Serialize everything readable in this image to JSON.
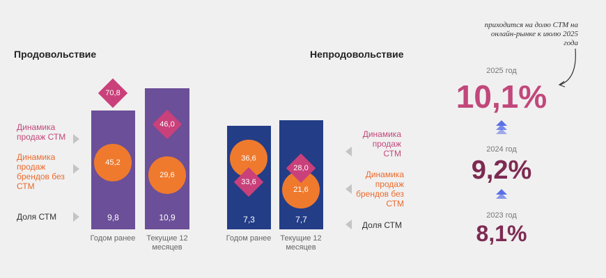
{
  "chart_data": [
    {
      "type": "bar",
      "title": "Продовольствие",
      "categories": [
        "Годом ранее",
        "Текущие 12 месяцев"
      ],
      "series": [
        {
          "name": "Доля СТМ",
          "values": [
            9.8,
            10.9
          ],
          "labels": [
            "9,8",
            "10,9"
          ]
        },
        {
          "name": "Динамика продаж СТМ",
          "values": [
            70.8,
            46.0
          ],
          "labels": [
            "70,8",
            "46,0"
          ]
        },
        {
          "name": "Динамика продаж брендов без СТМ",
          "values": [
            45.2,
            29.6
          ],
          "labels": [
            "45,2",
            "29,6"
          ]
        }
      ]
    },
    {
      "type": "bar",
      "title": "Непродовольствие",
      "categories": [
        "Годом ранее",
        "Текущие 12 месяцев"
      ],
      "series": [
        {
          "name": "Доля СТМ",
          "values": [
            7.3,
            7.7
          ],
          "labels": [
            "7,3",
            "7,7"
          ]
        },
        {
          "name": "Динамика продаж СТМ",
          "values": [
            33.6,
            28.0
          ],
          "labels": [
            "33,6",
            "28,0"
          ]
        },
        {
          "name": "Динамика продаж брендов без СТМ",
          "values": [
            36.6,
            21.6
          ],
          "labels": [
            "36,6",
            "21,6"
          ]
        }
      ]
    }
  ],
  "food": {
    "title": "Продовольствие",
    "legend_stm": "Динамика продаж СТМ",
    "legend_brand": "Динамика продаж брендов без СТМ",
    "legend_share": "Доля СТМ",
    "cat1": "Годом ранее",
    "cat2": "Текущие 12 месяцев"
  },
  "nonfood": {
    "title": "Непродовольствие",
    "legend_stm": "Динамика продаж СТМ",
    "legend_brand": "Динамика продаж брендов без СТМ",
    "legend_share": "Доля СТМ",
    "cat1": "Годом ранее",
    "cat2": "Текущие 12 месяцев"
  },
  "summary": {
    "note": "приходится на долю СТМ на онлайн-рынке к июлю 2025 года",
    "items": [
      {
        "year": "2025 год",
        "value": "10,1%",
        "color": "#c2477a"
      },
      {
        "year": "2024 год",
        "value": "9,2%",
        "color": "#7d2a52"
      },
      {
        "year": "2023 год",
        "value": "8,1%",
        "color": "#7d2a52"
      }
    ],
    "arrow_color": "#5b6fe6"
  },
  "colors": {
    "food_bar": "#6b4f98",
    "nonfood_bar": "#233d87",
    "stm": "#c9407a",
    "brand": "#ef7a2d"
  }
}
